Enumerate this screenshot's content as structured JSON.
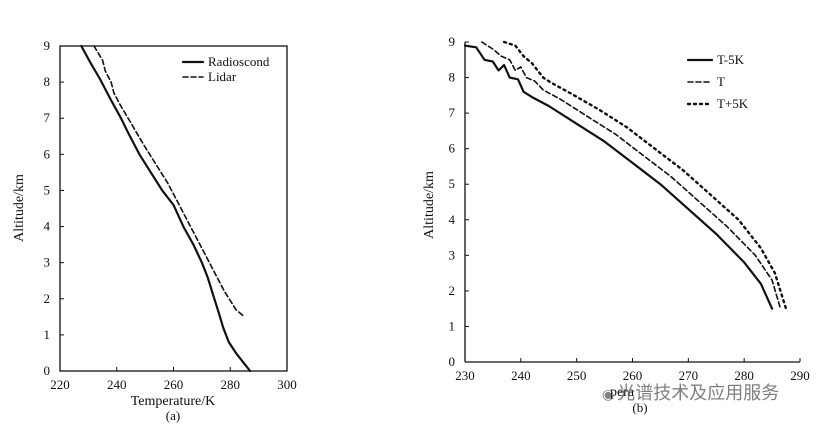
{
  "chart_data": [
    {
      "type": "line",
      "caption": "(a)",
      "title": "",
      "xlabel": "Temperature/K",
      "ylabel": "Altitude/km",
      "xlim": [
        220,
        300
      ],
      "ylim": [
        0,
        9
      ],
      "xticks": [
        220,
        240,
        260,
        280,
        300
      ],
      "yticks": [
        0,
        1,
        2,
        3,
        4,
        5,
        6,
        7,
        8,
        9
      ],
      "grid": false,
      "legend_position": "top-right",
      "series": [
        {
          "name": "Radioscond",
          "style": "solid",
          "points": [
            [
              227.5,
              9.0
            ],
            [
              231.0,
              8.5
            ],
            [
              234.0,
              8.1
            ],
            [
              238.0,
              7.5
            ],
            [
              241.5,
              7.0
            ],
            [
              244.0,
              6.6
            ],
            [
              248.0,
              6.0
            ],
            [
              252.0,
              5.5
            ],
            [
              256.0,
              5.0
            ],
            [
              260.0,
              4.6
            ],
            [
              263.5,
              4.0
            ],
            [
              267.0,
              3.5
            ],
            [
              270.0,
              3.0
            ],
            [
              272.0,
              2.6
            ],
            [
              274.0,
              2.1
            ],
            [
              276.0,
              1.6
            ],
            [
              277.5,
              1.2
            ],
            [
              279.5,
              0.8
            ],
            [
              282.0,
              0.5
            ],
            [
              285.0,
              0.2
            ],
            [
              287.0,
              0.0
            ]
          ]
        },
        {
          "name": "Lidar",
          "style": "dashed",
          "points": [
            [
              232.0,
              9.0
            ],
            [
              233.5,
              8.8
            ],
            [
              235.0,
              8.6
            ],
            [
              236.0,
              8.3
            ],
            [
              238.0,
              8.0
            ],
            [
              239.0,
              7.7
            ],
            [
              241.0,
              7.4
            ],
            [
              244.0,
              7.0
            ],
            [
              247.0,
              6.6
            ],
            [
              250.0,
              6.2
            ],
            [
              254.0,
              5.7
            ],
            [
              258.0,
              5.2
            ],
            [
              262.0,
              4.6
            ],
            [
              266.0,
              4.0
            ],
            [
              270.0,
              3.4
            ],
            [
              274.0,
              2.8
            ],
            [
              278.0,
              2.2
            ],
            [
              282.0,
              1.7
            ],
            [
              285.0,
              1.5
            ]
          ]
        }
      ]
    },
    {
      "type": "line",
      "caption": "(b)",
      "title": "",
      "xlabel": "",
      "ylabel": "Altitude/km",
      "xlim": [
        230,
        290
      ],
      "ylim": [
        0,
        9
      ],
      "xticks": [
        230,
        240,
        250,
        260,
        270,
        280,
        290
      ],
      "yticks": [
        0,
        1,
        2,
        3,
        4,
        5,
        6,
        7,
        8,
        9
      ],
      "grid": false,
      "legend_position": "top-right",
      "series": [
        {
          "name": "T-5K",
          "style": "solid",
          "points": [
            [
              230.0,
              8.9
            ],
            [
              232.0,
              8.85
            ],
            [
              233.5,
              8.5
            ],
            [
              235.0,
              8.45
            ],
            [
              236.0,
              8.2
            ],
            [
              237.0,
              8.35
            ],
            [
              238.0,
              8.0
            ],
            [
              239.5,
              7.95
            ],
            [
              240.5,
              7.6
            ],
            [
              242.0,
              7.45
            ],
            [
              245.0,
              7.2
            ],
            [
              250.0,
              6.7
            ],
            [
              255.0,
              6.2
            ],
            [
              260.0,
              5.6
            ],
            [
              265.0,
              5.0
            ],
            [
              270.0,
              4.3
            ],
            [
              275.0,
              3.6
            ],
            [
              280.0,
              2.8
            ],
            [
              283.0,
              2.2
            ],
            [
              285.0,
              1.5
            ]
          ]
        },
        {
          "name": "T",
          "style": "dashed",
          "points": [
            [
              233.0,
              9.0
            ],
            [
              235.0,
              8.8
            ],
            [
              236.5,
              8.6
            ],
            [
              238.0,
              8.5
            ],
            [
              239.0,
              8.2
            ],
            [
              240.0,
              8.3
            ],
            [
              241.0,
              8.0
            ],
            [
              242.5,
              7.9
            ],
            [
              244.0,
              7.65
            ],
            [
              247.0,
              7.4
            ],
            [
              252.0,
              6.9
            ],
            [
              257.0,
              6.4
            ],
            [
              262.0,
              5.8
            ],
            [
              267.0,
              5.2
            ],
            [
              272.0,
              4.5
            ],
            [
              277.0,
              3.8
            ],
            [
              282.0,
              3.0
            ],
            [
              285.0,
              2.3
            ],
            [
              286.5,
              1.5
            ]
          ]
        },
        {
          "name": "T+5K",
          "style": "dotted",
          "points": [
            [
              237.0,
              9.0
            ],
            [
              239.0,
              8.9
            ],
            [
              240.5,
              8.6
            ],
            [
              242.0,
              8.4
            ],
            [
              244.0,
              8.0
            ],
            [
              245.5,
              7.85
            ],
            [
              249.0,
              7.55
            ],
            [
              254.0,
              7.1
            ],
            [
              259.0,
              6.6
            ],
            [
              264.0,
              6.0
            ],
            [
              269.0,
              5.4
            ],
            [
              274.0,
              4.7
            ],
            [
              279.0,
              4.0
            ],
            [
              283.0,
              3.2
            ],
            [
              285.5,
              2.5
            ],
            [
              287.5,
              1.5
            ]
          ]
        }
      ]
    }
  ],
  "overlay": {
    "xlabel_fragment": "pera",
    "watermark_text": "光谱技术及应用服务",
    "watermark_icon": "wechat-icon"
  }
}
